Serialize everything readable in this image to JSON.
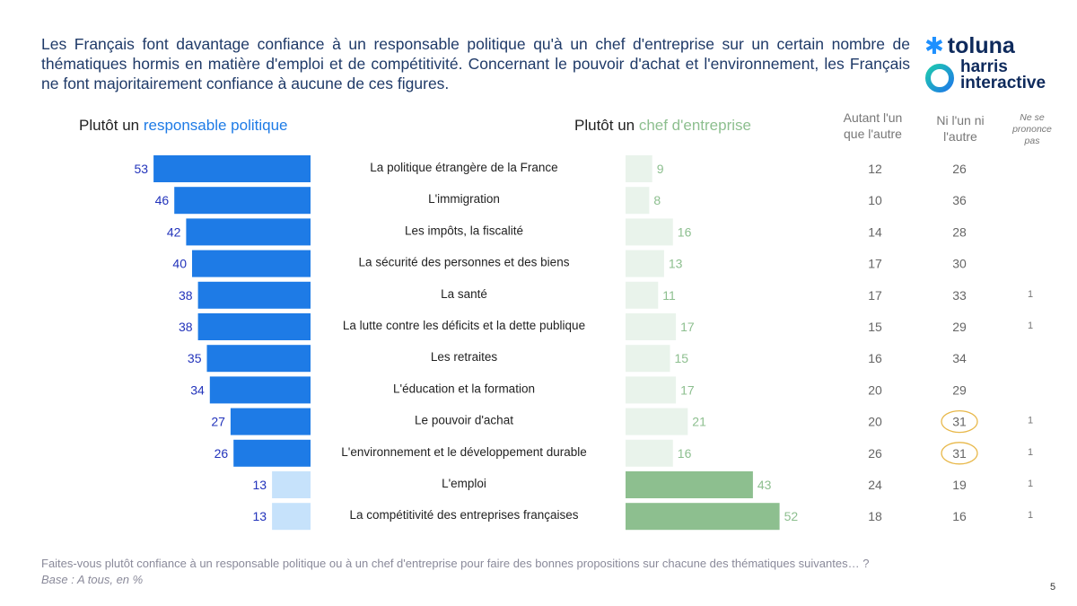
{
  "title": "Les Français font davantage confiance à un responsable politique qu'à un chef d'entreprise sur un certain nombre de thématiques hormis en matière d'emploi et de compétitivité. Concernant le pouvoir d'achat et l'environnement, les Français ne font majoritairement confiance à aucune de ces figures.",
  "logo": {
    "toluna": "toluna",
    "harris_line1": "harris",
    "harris_line2": "interactive"
  },
  "headers": {
    "left_prefix": "Plutôt un ",
    "left_highlight": "responsable politique",
    "right_prefix": "Plutôt un ",
    "right_highlight": "chef d'entreprise",
    "autant_line1": "Autant l'un",
    "autant_line2": "que l'autre",
    "ni_line1": "Ni l'un ni",
    "ni_line2": "l'autre",
    "nsp_line1": "Ne se",
    "nsp_line2": "prononce",
    "nsp_line3": "pas"
  },
  "footer": {
    "question": "Faites-vous plutôt confiance à un responsable politique ou à un chef d'entreprise pour faire des bonnes propositions sur chacune des thématiques suivantes… ?",
    "base": "Base : A tous, en %"
  },
  "page_number": "5",
  "colors": {
    "politique_strong": "#1e7be6",
    "politique_light": "#c6e2fb",
    "entreprise_light": "#e9f3eb",
    "entreprise_strong": "#8dbf8f",
    "politique_label": "#2233bb",
    "entreprise_label": "#8dbf8f",
    "circle": "#e8b84a"
  },
  "chart_data": {
    "type": "bar",
    "title": "Plutôt un responsable politique / Plutôt un chef d'entreprise",
    "unit": "%",
    "categories": [
      "La politique étrangère de la France",
      "L'immigration",
      "Les impôts, la fiscalité",
      "La sécurité des personnes et des biens",
      "La santé",
      "La lutte contre les déficits et la dette publique",
      "Les retraites",
      "L'éducation et la formation",
      "Le pouvoir d'achat",
      "L'environnement et le développement durable",
      "L'emploi",
      "La compétitivité des entreprises françaises"
    ],
    "series": [
      {
        "name": "Plutôt un responsable politique",
        "values": [
          53,
          46,
          42,
          40,
          38,
          38,
          35,
          34,
          27,
          26,
          13,
          13
        ]
      },
      {
        "name": "Plutôt un chef d'entreprise",
        "values": [
          9,
          8,
          16,
          13,
          11,
          17,
          15,
          17,
          21,
          16,
          43,
          52
        ]
      },
      {
        "name": "Autant l'un que l'autre",
        "values": [
          12,
          10,
          14,
          17,
          17,
          15,
          16,
          20,
          20,
          26,
          24,
          18
        ]
      },
      {
        "name": "Ni l'un ni l'autre",
        "values": [
          26,
          36,
          28,
          30,
          33,
          29,
          34,
          29,
          31,
          31,
          19,
          16
        ]
      },
      {
        "name": "Ne se prononce pas",
        "values": [
          null,
          null,
          null,
          null,
          1,
          1,
          null,
          null,
          1,
          1,
          1,
          1
        ]
      }
    ],
    "highlighted": {
      "series": "Ni l'un ni l'autre",
      "categories": [
        "Le pouvoir d'achat",
        "L'environnement et le développement durable"
      ]
    },
    "dominant_politique": [
      true,
      true,
      true,
      true,
      true,
      true,
      true,
      true,
      true,
      true,
      false,
      false
    ],
    "dominant_entreprise": [
      false,
      false,
      false,
      false,
      false,
      false,
      false,
      false,
      false,
      false,
      true,
      true
    ]
  }
}
